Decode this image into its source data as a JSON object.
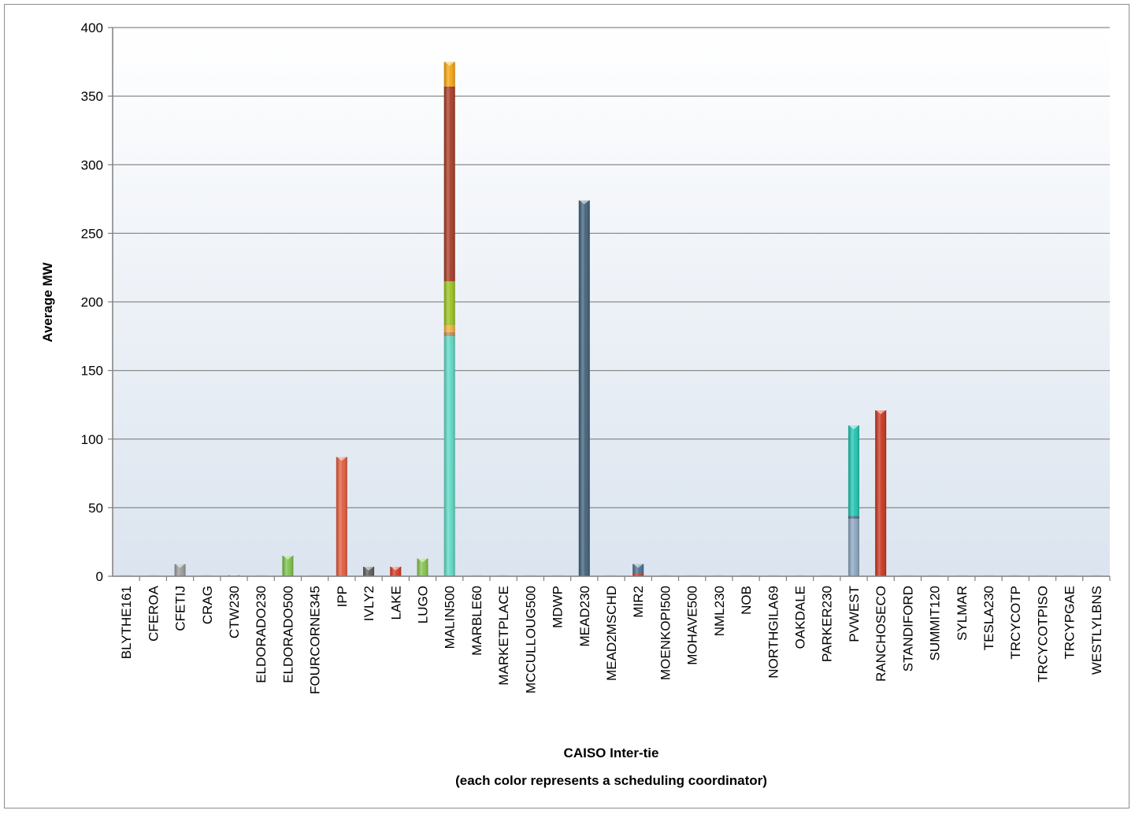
{
  "chart_data": {
    "type": "bar",
    "stacked": true,
    "xlabel": "CAISO Inter-tie",
    "xlabel_sub": "(each color represents a scheduling coordinator)",
    "ylabel": "Average  MW",
    "ylim": [
      0,
      400
    ],
    "yticks": [
      0,
      50,
      100,
      150,
      200,
      250,
      300,
      350,
      400
    ],
    "grid": true,
    "legend": "none",
    "categories": [
      "BLYTHE161",
      "CFEROA",
      "CFETIJ",
      "CRAG",
      "CTW230",
      "ELDORADO230",
      "ELDORADO500",
      "FOURCORNE345",
      "IPP",
      "IVLY2",
      "LAKE",
      "LUGO",
      "MALIN500",
      "MARBLE60",
      "MARKETPLACE",
      "MCCULLOUG500",
      "MDWP",
      "MEAD230",
      "MEAD2MSCHD",
      "MIR2",
      "MOENKOPI500",
      "MOHAVE500",
      "NML230",
      "NOB",
      "NORTHGILA69",
      "OAKDALE",
      "PARKER230",
      "PVWEST",
      "RANCHOSECO",
      "STANDIFORD",
      "SUMMIT120",
      "SYLMAR",
      "TESLA230",
      "TRCYCOTP",
      "TRCYCOTPISO",
      "TRCYPGAE",
      "WESTLYLBNS"
    ],
    "bars": [
      [],
      [],
      [
        {
          "value": 9,
          "color": "#9a9a9a"
        }
      ],
      [],
      [
        {
          "value": 1,
          "color": "#7ab0c0"
        }
      ],
      [],
      [
        {
          "value": 15,
          "color": "#7cc04a"
        }
      ],
      [],
      [
        {
          "value": 87,
          "color": "#e15a3c"
        }
      ],
      [
        {
          "value": 7,
          "color": "#5a5a5a"
        }
      ],
      [
        {
          "value": 7,
          "color": "#d23a24"
        }
      ],
      [
        {
          "value": 13,
          "color": "#84c24e"
        }
      ],
      [
        {
          "value": 175,
          "color": "#5ed8c4"
        },
        {
          "value": 3,
          "color": "#c08a5a"
        },
        {
          "value": 5,
          "color": "#f0b03a"
        },
        {
          "value": 32,
          "color": "#9ac21e"
        },
        {
          "value": 142,
          "color": "#a63a24"
        },
        {
          "value": 18,
          "color": "#f5a410"
        }
      ],
      [],
      [],
      [],
      [],
      [
        {
          "value": 274,
          "color": "#3f5f78"
        }
      ],
      [],
      [
        {
          "value": 2,
          "color": "#c04030"
        },
        {
          "value": 7,
          "color": "#4a7090"
        }
      ],
      [],
      [],
      [],
      [],
      [],
      [],
      [],
      [
        {
          "value": 42,
          "color": "#8aa6c0"
        },
        {
          "value": 2,
          "color": "#4a6a88"
        },
        {
          "value": 66,
          "color": "#1ec4b0"
        }
      ],
      [
        {
          "value": 121,
          "color": "#c8341c"
        }
      ],
      [],
      [],
      [],
      [],
      [],
      [],
      [],
      []
    ]
  }
}
